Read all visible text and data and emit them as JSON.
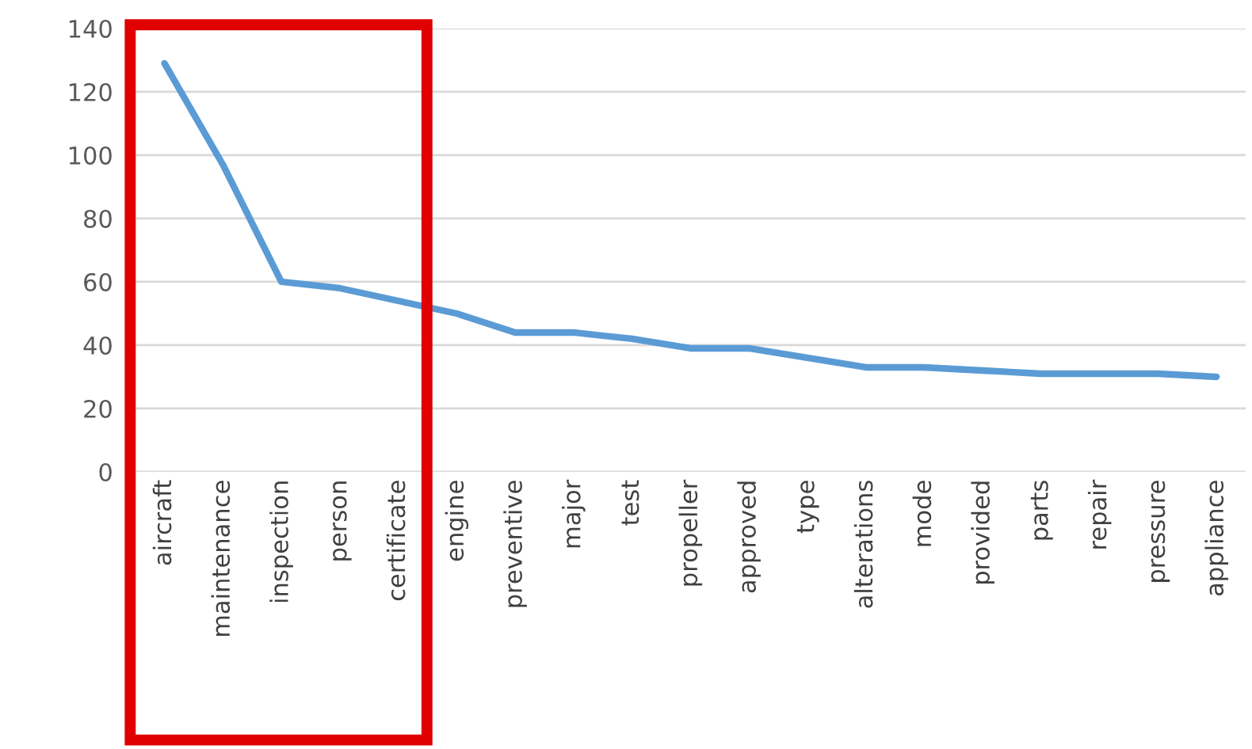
{
  "chart_data": {
    "type": "line",
    "categories": [
      "aircraft",
      "maintenance",
      "inspection",
      "person",
      "certificate",
      "engine",
      "preventive",
      "major",
      "test",
      "propeller",
      "approved",
      "type",
      "alterations",
      "mode",
      "provided",
      "parts",
      "repair",
      "pressure",
      "appliance"
    ],
    "series": [
      {
        "color": "#5b9bd5",
        "values": [
          129,
          97,
          60,
          58,
          54,
          50,
          44,
          44,
          42,
          39,
          39,
          36,
          33,
          33,
          32,
          31,
          31,
          31,
          30
        ]
      }
    ],
    "ylim": [
      0,
      140
    ],
    "yticks": [
      0,
      20,
      40,
      60,
      80,
      100,
      120,
      140
    ],
    "grid": "y",
    "legend": false
  }
}
